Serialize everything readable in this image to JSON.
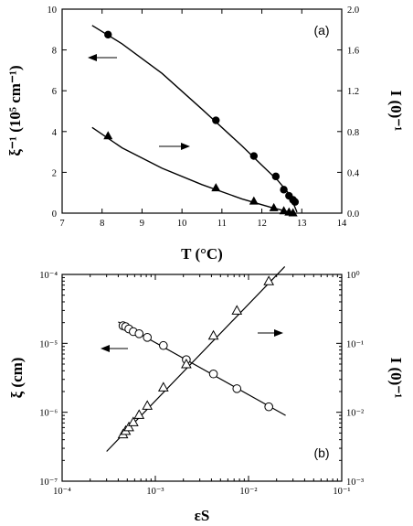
{
  "chart_data": [
    {
      "type": "scatter",
      "panel_label": "(a)",
      "xlabel": "T (°C)",
      "ylabel": "ξ⁻¹ (10⁵ cm⁻¹)",
      "y2label": "I (0)⁻¹",
      "xlim": [
        7,
        14
      ],
      "ylim": [
        0,
        10
      ],
      "y2lim": [
        0,
        2.0
      ],
      "xticks": [
        "7",
        "8",
        "9",
        "10",
        "11",
        "12",
        "13",
        "14"
      ],
      "yticks": [
        "0",
        "2",
        "4",
        "6",
        "8",
        "10"
      ],
      "y2ticks": [
        "0.0",
        "0.4",
        "0.8",
        "1.2",
        "1.6",
        "2.0"
      ],
      "series": [
        {
          "marker": "filled-circle",
          "axis": "left",
          "arrow": "left",
          "x": [
            8.15,
            10.85,
            11.8,
            12.35,
            12.55,
            12.68,
            12.78,
            12.83
          ],
          "y": [
            8.75,
            4.55,
            2.8,
            1.8,
            1.15,
            0.85,
            0.65,
            0.55
          ],
          "fit_x": [
            7.75,
            8.5,
            9.5,
            10.5,
            11.5,
            12.0,
            12.4,
            12.7,
            12.88
          ],
          "fit_y": [
            9.2,
            8.3,
            6.85,
            5.1,
            3.3,
            2.35,
            1.6,
            0.9,
            0.05
          ]
        },
        {
          "marker": "filled-triangle",
          "axis": "right",
          "arrow": "right",
          "x": [
            8.15,
            10.85,
            11.8,
            12.3,
            12.55,
            12.68,
            12.78
          ],
          "y": [
            0.76,
            0.25,
            0.12,
            0.055,
            0.025,
            0.012,
            0.005
          ],
          "fit_x": [
            7.75,
            8.5,
            9.5,
            10.5,
            11.5,
            12.2,
            12.6,
            12.8
          ],
          "fit_y": [
            0.84,
            0.64,
            0.44,
            0.28,
            0.14,
            0.06,
            0.02,
            0.0
          ]
        }
      ]
    },
    {
      "type": "scatter",
      "panel_label": "(b)",
      "xlabel": "εS",
      "ylabel": "ξ (cm)",
      "y2label": "I (0)⁻¹",
      "xscale": "log",
      "yscale": "log",
      "xlim": [
        0.0001,
        0.1
      ],
      "ylim": [
        1e-07,
        0.0001
      ],
      "y2lim": [
        0.001,
        1.0
      ],
      "xticks": [
        "10⁻⁴",
        "10⁻³",
        "10⁻²",
        "10⁻¹"
      ],
      "yticks": [
        "10⁻⁷",
        "10⁻⁶",
        "10⁻⁵",
        "10⁻⁴"
      ],
      "y2ticks": [
        "10⁻³",
        "10⁻²",
        "10⁻¹",
        "10⁰"
      ],
      "series": [
        {
          "marker": "open-circle",
          "axis": "left",
          "arrow": "left",
          "x": [
            0.00045,
            0.00048,
            0.00052,
            0.00058,
            0.00067,
            0.00082,
            0.00122,
            0.00215,
            0.0042,
            0.0075,
            0.0165
          ],
          "y": [
            1.8e-05,
            1.75e-05,
            1.62e-05,
            1.48e-05,
            1.38e-05,
            1.22e-05,
            9.3e-06,
            5.8e-06,
            3.6e-06,
            2.2e-06,
            1.2e-06
          ],
          "fit_x": [
            0.0004,
            0.025
          ],
          "fit_y": [
            2.05e-05,
            9e-07
          ]
        },
        {
          "marker": "open-triangle",
          "axis": "right",
          "arrow": "right",
          "x": [
            0.00045,
            0.00048,
            0.00052,
            0.00058,
            0.00067,
            0.00082,
            0.00122,
            0.00215,
            0.0042,
            0.0075,
            0.0165
          ],
          "y": [
            0.0048,
            0.0054,
            0.0061,
            0.0072,
            0.0092,
            0.0125,
            0.023,
            0.05,
            0.13,
            0.3,
            0.8
          ],
          "fit_x": [
            0.0003,
            0.0245
          ],
          "fit_y": [
            0.0027,
            1.3
          ]
        }
      ]
    }
  ]
}
